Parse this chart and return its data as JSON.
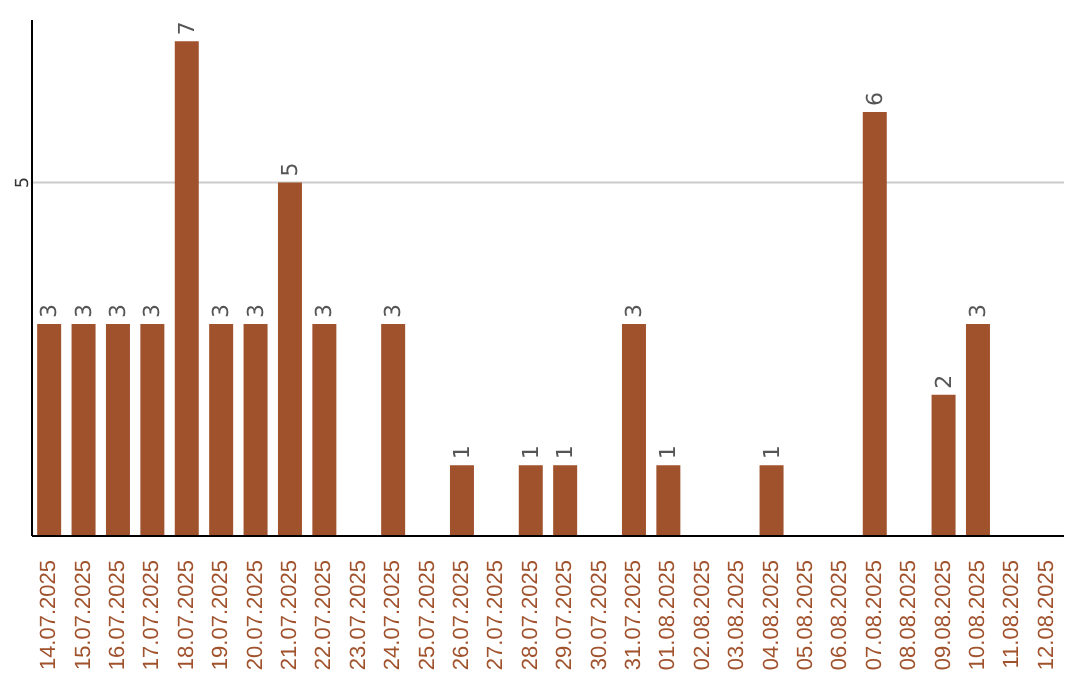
{
  "chart_data": {
    "type": "bar",
    "categories": [
      "14.07.2025",
      "15.07.2025",
      "16.07.2025",
      "17.07.2025",
      "18.07.2025",
      "19.07.2025",
      "20.07.2025",
      "21.07.2025",
      "22.07.2025",
      "23.07.2025",
      "24.07.2025",
      "25.07.2025",
      "26.07.2025",
      "27.07.2025",
      "28.07.2025",
      "29.07.2025",
      "30.07.2025",
      "31.07.2025",
      "01.08.2025",
      "02.08.2025",
      "03.08.2025",
      "04.08.2025",
      "05.08.2025",
      "06.08.2025",
      "07.08.2025",
      "08.08.2025",
      "09.08.2025",
      "10.08.2025",
      "11.08.2025",
      "12.08.2025"
    ],
    "values": [
      3,
      3,
      3,
      3,
      7,
      3,
      3,
      5,
      3,
      null,
      3,
      null,
      1,
      null,
      1,
      1,
      null,
      3,
      1,
      null,
      null,
      1,
      null,
      null,
      6,
      null,
      2,
      3,
      null,
      null
    ],
    "color": "#a0522d",
    "ylim": [
      0,
      7.3
    ],
    "yticks": [
      5
    ],
    "grid": "y",
    "data_labels": true
  }
}
